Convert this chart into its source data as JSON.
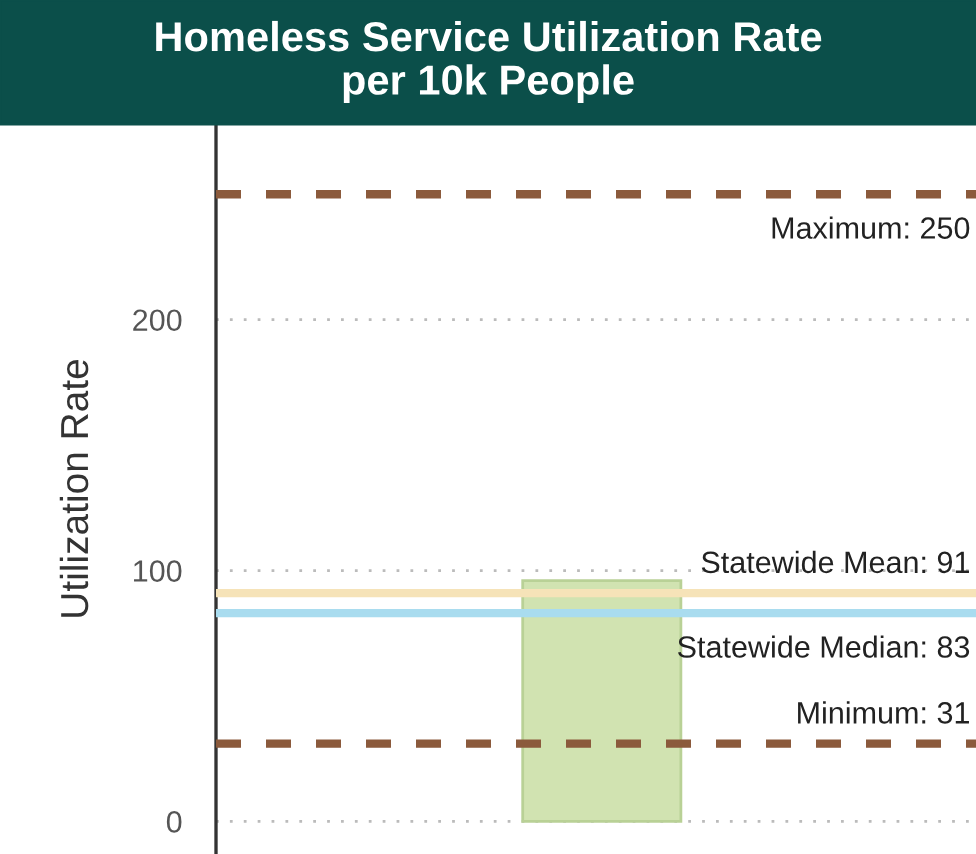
{
  "chart_data": {
    "type": "bar",
    "title": "Homeless Service Utilization Rate\nper 10k People",
    "ylabel": "Utilization Rate",
    "categories": [
      null
    ],
    "values": [
      96
    ],
    "color": "#d1e3b1",
    "ylim": [
      -13,
      278
    ],
    "yticks": [
      0,
      100,
      200
    ],
    "grid": "y",
    "ref_lines": [
      {
        "axis": "y",
        "value": 250,
        "label": "Maximum: 250",
        "color": "#8b5a3c",
        "line_style": "dashed"
      },
      {
        "axis": "y",
        "value": 91,
        "label": "Statewide Mean: 91",
        "color": "#f6e3b8",
        "line_style": "solid"
      },
      {
        "axis": "y",
        "value": 83,
        "label": "Statewide Median: 83",
        "color": "#a9dcef",
        "line_style": "solid"
      },
      {
        "axis": "y",
        "value": 31,
        "label": "Minimum: 31",
        "color": "#8b5a3c",
        "line_style": "dashed"
      }
    ]
  }
}
